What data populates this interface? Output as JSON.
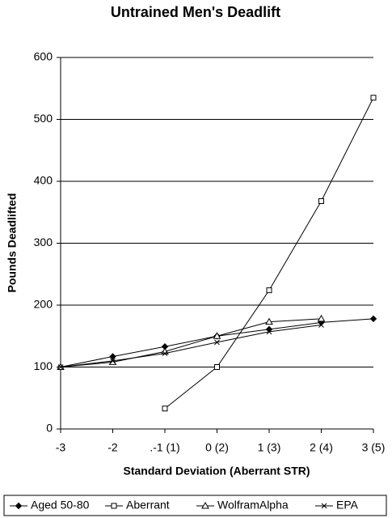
{
  "chart_data": {
    "type": "line",
    "title": "Untrained Men's Deadlift",
    "x_label": "Standard Deviation (Aberrant STR)",
    "y_label": "Pounds Deadlifted",
    "categories": [
      "-3",
      "-2",
      ".-1 (1)",
      "0 (2)",
      "1 (3)",
      "2 (4)",
      "3 (5)"
    ],
    "series": [
      {
        "name": "Aged 50-80",
        "color": "#000000",
        "marker": "diamond",
        "values": [
          100,
          117,
          133,
          150,
          161,
          172,
          178
        ]
      },
      {
        "name": "Aberrant",
        "color": "#000000",
        "marker": "square",
        "values": [
          null,
          null,
          33,
          100,
          224,
          368,
          535
        ]
      },
      {
        "name": "WolframAlpha",
        "color": "#000000",
        "marker": "triangle",
        "values": [
          100,
          108,
          125,
          150,
          173,
          178,
          null
        ]
      },
      {
        "name": "EPA",
        "color": "#000000",
        "marker": "x",
        "values": [
          100,
          110,
          122,
          140,
          157,
          168,
          null
        ]
      }
    ],
    "ylim": [
      0,
      600
    ],
    "yticks": [
      0,
      100,
      200,
      300,
      400,
      500,
      600
    ],
    "grid": true,
    "legend": "bottom"
  }
}
